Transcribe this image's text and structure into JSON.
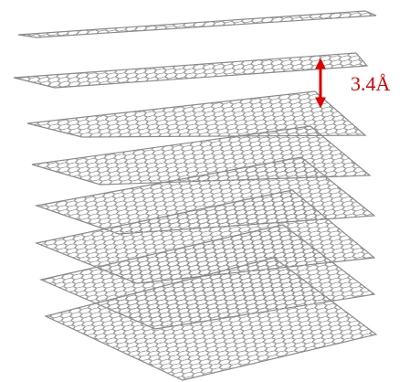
{
  "annotation": {
    "spacing_label": "3.4Å"
  }
}
